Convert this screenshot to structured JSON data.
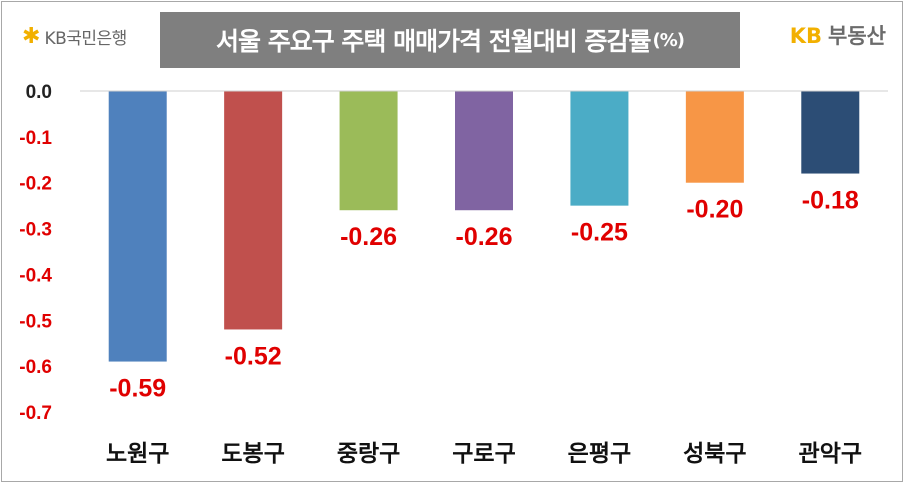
{
  "brand_left": {
    "icon": "kb-star-icon",
    "text": "KB국민은행"
  },
  "title": {
    "main": "서울 주요구 주택 매매가격 전월대비 증감률",
    "unit": "(%)"
  },
  "brand_right": {
    "kb": "KB",
    "text": "부동산"
  },
  "chart_data": {
    "type": "bar",
    "title": "서울 주요구 주택 매매가격 전월대비 증감률(%)",
    "categories": [
      "노원구",
      "도봉구",
      "중랑구",
      "구로구",
      "은평구",
      "성북구",
      "관악구"
    ],
    "values": [
      -0.59,
      -0.52,
      -0.26,
      -0.26,
      -0.25,
      -0.2,
      -0.18
    ],
    "data_labels": [
      "-0.59",
      "-0.52",
      "-0.26",
      "-0.26",
      "-0.25",
      "-0.20",
      "-0.18"
    ],
    "colors": [
      "#4f81bd",
      "#c0504d",
      "#9bbb59",
      "#8064a2",
      "#4bacc6",
      "#f79646",
      "#2c4d75"
    ],
    "yticks": [
      "0.0",
      "-0.1",
      "-0.2",
      "-0.3",
      "-0.4",
      "-0.5",
      "-0.6",
      "-0.7"
    ],
    "ylim": [
      -0.7,
      0.0
    ],
    "grid": false,
    "legend": "none",
    "label_color": "#e00000",
    "tick_color_zero": "#222222",
    "tick_color_negative": "#e00000"
  }
}
